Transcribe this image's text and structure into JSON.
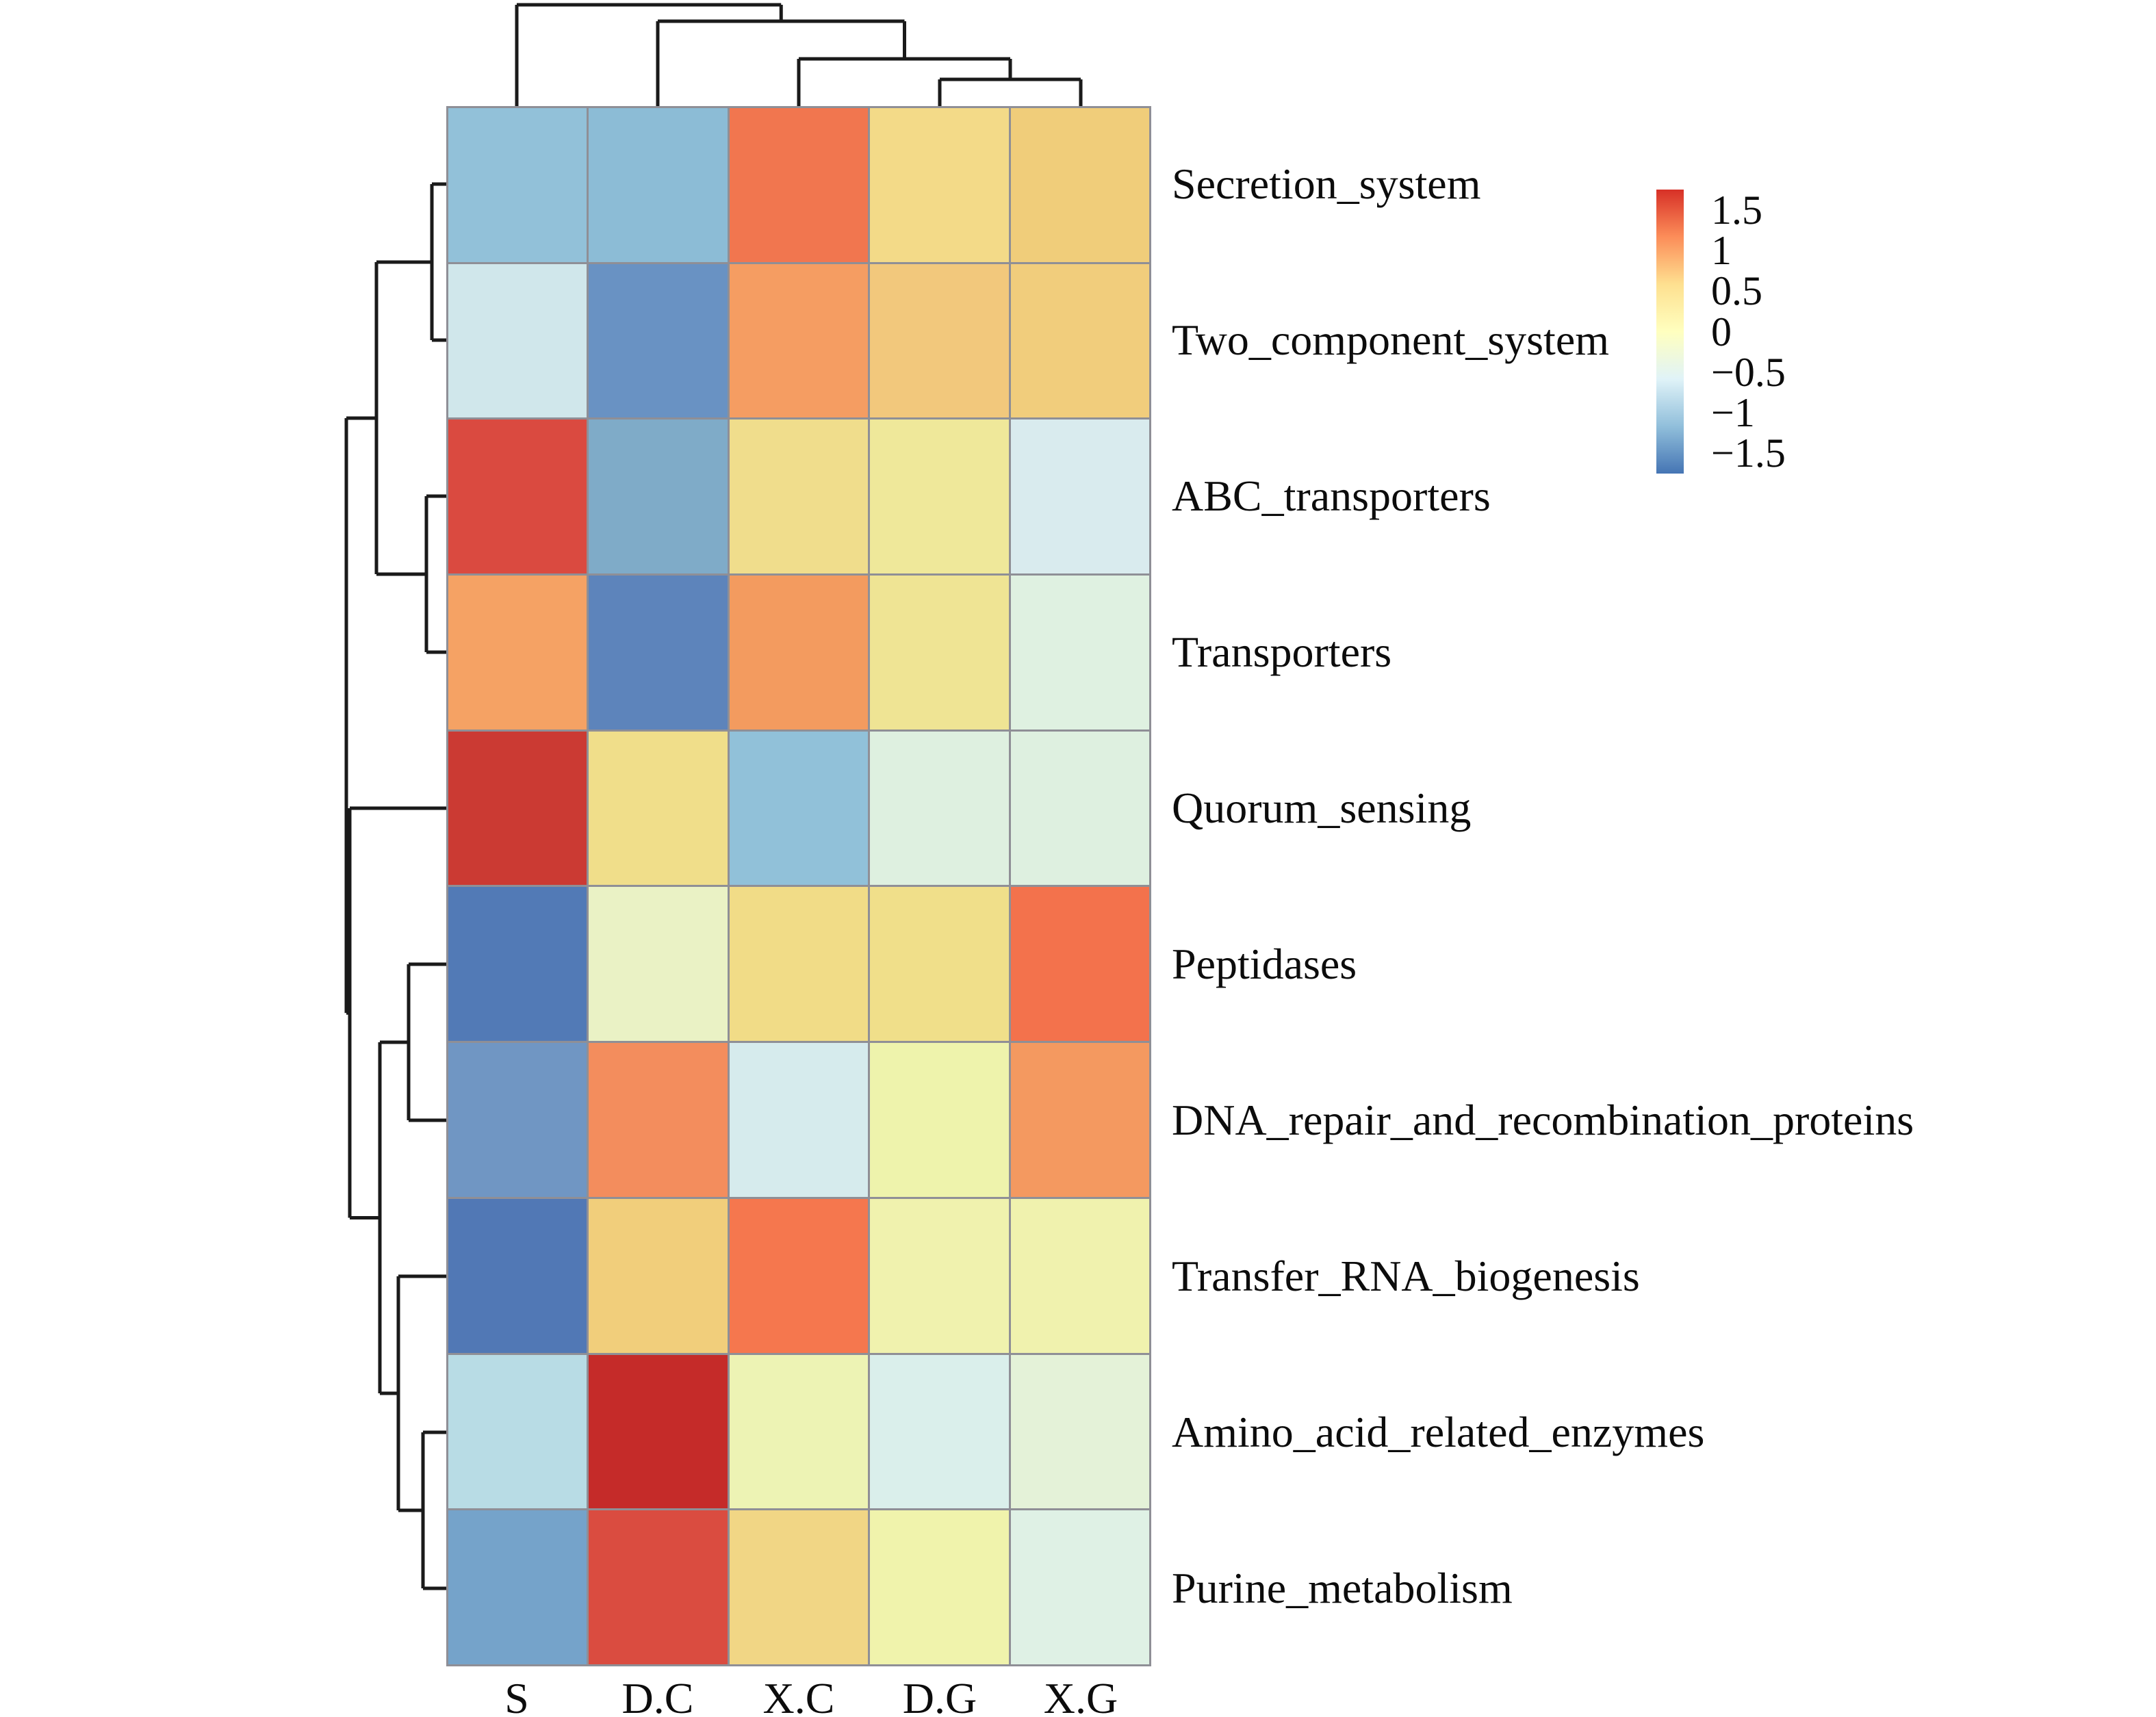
{
  "chart_data": {
    "type": "heatmap",
    "title": "",
    "columns": [
      "S",
      "D.C",
      "X.C",
      "D.G",
      "X.G"
    ],
    "rows": [
      "Secretion_system",
      "Two_component_system",
      "ABC_transporters",
      "Transporters",
      "Quorum_sensing",
      "Peptidases",
      "DNA_repair_and_recombination_proteins",
      "Transfer_RNA_biogenesis",
      "Amino_acid_related_enzymes",
      "Purine_metabolism"
    ],
    "values": [
      [
        -0.8,
        -0.85,
        1.35,
        0.45,
        0.55
      ],
      [
        -0.45,
        -1.25,
        1.0,
        0.6,
        0.55
      ],
      [
        1.55,
        -1.0,
        0.35,
        0.2,
        -0.4
      ],
      [
        0.95,
        -1.4,
        1.0,
        0.25,
        -0.3
      ],
      [
        1.65,
        0.3,
        -0.8,
        -0.3,
        -0.3
      ],
      [
        -1.5,
        -0.1,
        0.35,
        0.3,
        1.35
      ],
      [
        -1.2,
        1.1,
        -0.4,
        0.05,
        1.0
      ],
      [
        -1.55,
        0.55,
        1.3,
        0.05,
        0.05
      ],
      [
        -0.55,
        1.75,
        0.05,
        -0.35,
        -0.2
      ],
      [
        -1.1,
        1.5,
        0.45,
        0.05,
        -0.25
      ]
    ],
    "cell_colors": [
      [
        "#92c1d9",
        "#8cbcd6",
        "#f1764f",
        "#f3da88",
        "#f0cd7a"
      ],
      [
        "#d0e7eb",
        "#6992c3",
        "#f59d62",
        "#f2c87c",
        "#f1cd7c"
      ],
      [
        "#da4a40",
        "#7fabc8",
        "#f0dd8c",
        "#efe89a",
        "#d9ebee"
      ],
      [
        "#f5a264",
        "#5d84bb",
        "#f39b5f",
        "#efe494",
        "#dff1e1"
      ],
      [
        "#cb3a33",
        "#f0de8a",
        "#91c1d9",
        "#def0e0",
        "#def0e0"
      ],
      [
        "#527ab6",
        "#eaf2c5",
        "#f1dc87",
        "#f0df8a",
        "#f3724c"
      ],
      [
        "#7096c3",
        "#f38d5d",
        "#d6ebed",
        "#eef3ac",
        "#f49960"
      ],
      [
        "#5178b5",
        "#f1ce7b",
        "#f5774e",
        "#f0f2ae",
        "#f0f2ae"
      ],
      [
        "#b8dce5",
        "#c52b29",
        "#edf3b4",
        "#daefeb",
        "#e4f2d8"
      ],
      [
        "#75a3ca",
        "#da4c40",
        "#f1d685",
        "#f0f3ac",
        "#dff1e5"
      ]
    ],
    "grid_line_color": "#8f8f96",
    "dendrogram_color": "#1a1a1a",
    "legend": {
      "position": "right",
      "ticks": [
        {
          "label": "1.5",
          "value": 1.5
        },
        {
          "label": "1",
          "value": 1
        },
        {
          "label": "0.5",
          "value": 0.5
        },
        {
          "label": "0",
          "value": 0
        },
        {
          "label": "−0.5",
          "value": -0.5
        },
        {
          "label": "−1",
          "value": -1
        },
        {
          "label": "−1.5",
          "value": -1.5
        }
      ],
      "gradient_top_to_bottom": [
        "#d73027",
        "#fc8d59",
        "#fee090",
        "#ffffbf",
        "#e0f3f8",
        "#91bfdb",
        "#4575b4"
      ],
      "value_range": [
        -1.75,
        1.75
      ]
    },
    "col_dendrogram": {
      "merges": [
        {
          "children": [
            {
              "leaf": 3
            },
            {
              "leaf": 4
            }
          ],
          "height": 39
        },
        {
          "children": [
            {
              "leaf": 2
            },
            {
              "node": 0
            }
          ],
          "height": 69
        },
        {
          "children": [
            {
              "leaf": 1
            },
            {
              "node": 1
            }
          ],
          "height": 124
        },
        {
          "children": [
            {
              "leaf": 0
            },
            {
              "node": 2
            }
          ],
          "height": 148
        }
      ]
    },
    "row_dendrogram": {
      "merges": [
        {
          "children": [
            {
              "leaf": 0
            },
            {
              "leaf": 1
            }
          ],
          "height": 21
        },
        {
          "children": [
            {
              "leaf": 2
            },
            {
              "leaf": 3
            }
          ],
          "height": 29
        },
        {
          "children": [
            {
              "node": 0
            },
            {
              "node": 1
            }
          ],
          "height": 102
        },
        {
          "children": [
            {
              "leaf": 5
            },
            {
              "leaf": 6
            }
          ],
          "height": 55
        },
        {
          "children": [
            {
              "leaf": 8
            },
            {
              "leaf": 9
            }
          ],
          "height": 34
        },
        {
          "children": [
            {
              "leaf": 7
            },
            {
              "node": 4
            }
          ],
          "height": 70
        },
        {
          "children": [
            {
              "node": 3
            },
            {
              "node": 5
            }
          ],
          "height": 97
        },
        {
          "children": [
            {
              "leaf": 4
            },
            {
              "node": 6
            }
          ],
          "height": 141
        },
        {
          "children": [
            {
              "node": 2
            },
            {
              "node": 7
            }
          ],
          "height": 146
        }
      ]
    }
  }
}
